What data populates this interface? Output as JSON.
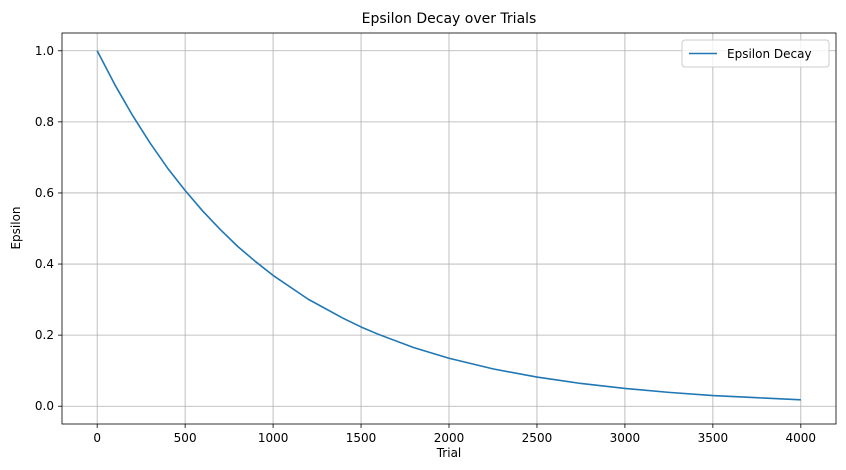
{
  "chart_data": {
    "type": "line",
    "title": "Epsilon Decay over Trials",
    "xlabel": "Trial",
    "ylabel": "Epsilon",
    "xlim": [
      -200,
      4200
    ],
    "ylim": [
      -0.05,
      1.05
    ],
    "xticks": [
      0,
      500,
      1000,
      1500,
      2000,
      2500,
      3000,
      3500,
      4000
    ],
    "yticks": [
      0.0,
      0.2,
      0.4,
      0.6,
      0.8,
      1.0
    ],
    "xtick_labels": [
      "0",
      "500",
      "1000",
      "1500",
      "2000",
      "2500",
      "3000",
      "3500",
      "4000"
    ],
    "ytick_labels": [
      "0.0",
      "0.2",
      "0.4",
      "0.6",
      "0.8",
      "1.0"
    ],
    "grid": true,
    "legend_position": "top-right",
    "series": [
      {
        "name": "Epsilon Decay",
        "color": "#1f77b4",
        "x": [
          0,
          100,
          200,
          300,
          400,
          500,
          600,
          700,
          800,
          900,
          1000,
          1200,
          1400,
          1500,
          1600,
          1800,
          2000,
          2250,
          2500,
          2750,
          3000,
          3250,
          3500,
          3750,
          4000
        ],
        "y": [
          1.0,
          0.905,
          0.819,
          0.741,
          0.67,
          0.607,
          0.549,
          0.497,
          0.449,
          0.407,
          0.368,
          0.301,
          0.247,
          0.223,
          0.202,
          0.165,
          0.135,
          0.105,
          0.082,
          0.064,
          0.05,
          0.039,
          0.03,
          0.024,
          0.018
        ]
      }
    ]
  }
}
